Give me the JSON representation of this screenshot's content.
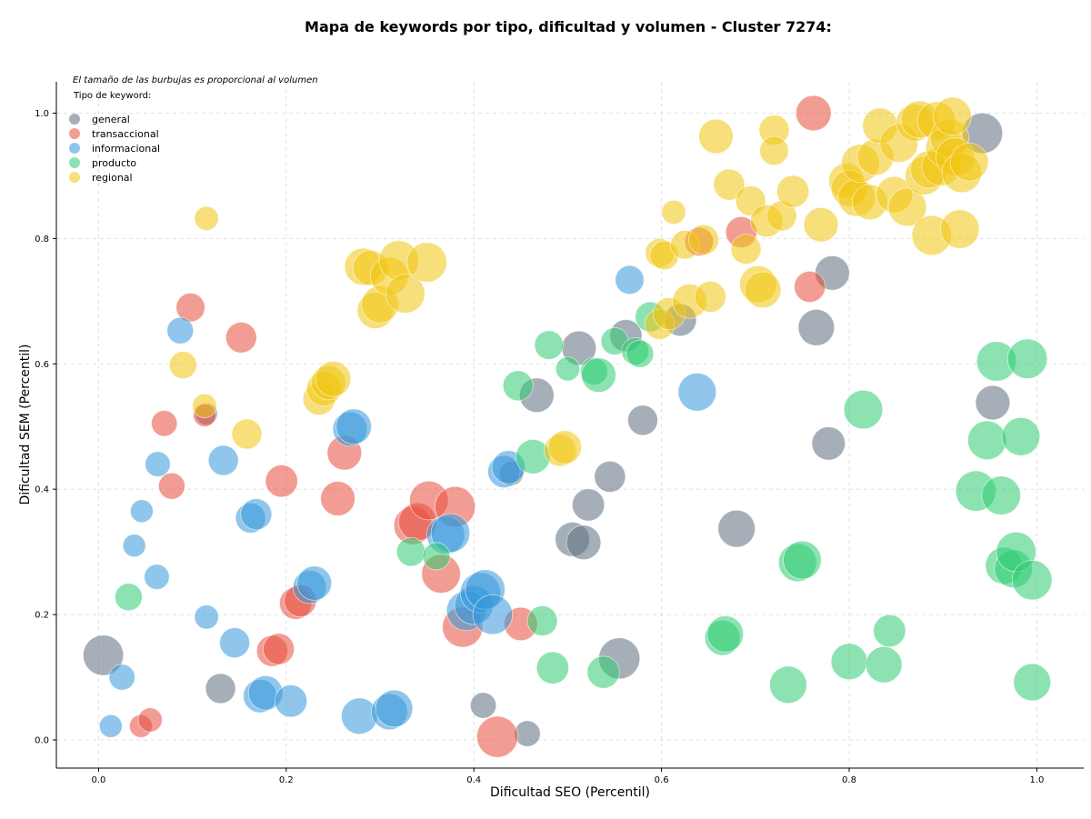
{
  "chart_data": {
    "type": "scatter",
    "title": "Mapa de keywords por tipo, dificultad y volumen - Cluster 7274:",
    "xlabel": "Dificultad SEO (Percentil)",
    "ylabel": "Dificultad SEM (Percentil)",
    "xlim": [
      -0.045,
      1.05
    ],
    "ylim": [
      -0.045,
      1.05
    ],
    "xticks": [
      "0.0",
      "0.2",
      "0.4",
      "0.6",
      "0.8",
      "1.0"
    ],
    "yticks": [
      "0.0",
      "0.2",
      "0.4",
      "0.6",
      "0.8",
      "1.0"
    ],
    "grid": true,
    "note": "El tamaño de las burbujas es proporcional al volumen",
    "legend": {
      "title": "Tipo de keyword:",
      "placement": "top-left"
    },
    "series": [
      {
        "name": "general",
        "color": "#5d6d7e",
        "points": [
          [
            0.005,
            0.135,
            0.9
          ],
          [
            0.13,
            0.082,
            0.35
          ],
          [
            0.115,
            0.52,
            0.1
          ],
          [
            0.41,
            0.055,
            0.2
          ],
          [
            0.457,
            0.01,
            0.2
          ],
          [
            0.44,
            0.425,
            0.15
          ],
          [
            0.467,
            0.55,
            0.55
          ],
          [
            0.512,
            0.625,
            0.55
          ],
          [
            0.522,
            0.375,
            0.45
          ],
          [
            0.505,
            0.32,
            0.55
          ],
          [
            0.517,
            0.315,
            0.55
          ],
          [
            0.545,
            0.42,
            0.4
          ],
          [
            0.555,
            0.13,
            0.95
          ],
          [
            0.562,
            0.645,
            0.45
          ],
          [
            0.58,
            0.51,
            0.35
          ],
          [
            0.62,
            0.67,
            0.45
          ],
          [
            0.68,
            0.337,
            0.7
          ],
          [
            0.765,
            0.658,
            0.65
          ],
          [
            0.782,
            0.745,
            0.55
          ],
          [
            0.778,
            0.473,
            0.5
          ],
          [
            0.953,
            0.538,
            0.55
          ],
          [
            0.942,
            0.968,
            0.9
          ]
        ]
      },
      {
        "name": "transaccional",
        "color": "#e74c3c",
        "points": [
          [
            0.045,
            0.022,
            0.12
          ],
          [
            0.055,
            0.032,
            0.15
          ],
          [
            0.07,
            0.505,
            0.2
          ],
          [
            0.078,
            0.405,
            0.22
          ],
          [
            0.098,
            0.69,
            0.3
          ],
          [
            0.113,
            0.518,
            0.12
          ],
          [
            0.152,
            0.642,
            0.38
          ],
          [
            0.195,
            0.413,
            0.45
          ],
          [
            0.185,
            0.142,
            0.4
          ],
          [
            0.192,
            0.145,
            0.4
          ],
          [
            0.21,
            0.218,
            0.45
          ],
          [
            0.215,
            0.222,
            0.45
          ],
          [
            0.255,
            0.385,
            0.55
          ],
          [
            0.262,
            0.458,
            0.55
          ],
          [
            0.335,
            0.342,
            0.75
          ],
          [
            0.34,
            0.348,
            0.75
          ],
          [
            0.352,
            0.382,
            0.8
          ],
          [
            0.365,
            0.265,
            0.8
          ],
          [
            0.38,
            0.372,
            0.9
          ],
          [
            0.388,
            0.18,
            0.9
          ],
          [
            0.425,
            0.005,
            0.95
          ],
          [
            0.45,
            0.185,
            0.5
          ],
          [
            0.64,
            0.795,
            0.3
          ],
          [
            0.685,
            0.81,
            0.4
          ],
          [
            0.758,
            0.723,
            0.4
          ],
          [
            0.762,
            1.0,
            0.6
          ]
        ]
      },
      {
        "name": "informacional",
        "color": "#3498db",
        "points": [
          [
            0.013,
            0.022,
            0.12
          ],
          [
            0.025,
            0.1,
            0.2
          ],
          [
            0.038,
            0.31,
            0.12
          ],
          [
            0.046,
            0.365,
            0.12
          ],
          [
            0.062,
            0.26,
            0.18
          ],
          [
            0.063,
            0.44,
            0.18
          ],
          [
            0.087,
            0.653,
            0.22
          ],
          [
            0.115,
            0.196,
            0.15
          ],
          [
            0.133,
            0.446,
            0.35
          ],
          [
            0.145,
            0.155,
            0.35
          ],
          [
            0.162,
            0.354,
            0.35
          ],
          [
            0.168,
            0.36,
            0.4
          ],
          [
            0.172,
            0.07,
            0.5
          ],
          [
            0.178,
            0.075,
            0.55
          ],
          [
            0.205,
            0.062,
            0.45
          ],
          [
            0.225,
            0.244,
            0.5
          ],
          [
            0.23,
            0.25,
            0.55
          ],
          [
            0.268,
            0.496,
            0.55
          ],
          [
            0.272,
            0.5,
            0.6
          ],
          [
            0.278,
            0.038,
            0.65
          ],
          [
            0.31,
            0.045,
            0.65
          ],
          [
            0.315,
            0.05,
            0.7
          ],
          [
            0.37,
            0.327,
            0.75
          ],
          [
            0.375,
            0.33,
            0.8
          ],
          [
            0.392,
            0.206,
            0.85
          ],
          [
            0.4,
            0.215,
            0.8
          ],
          [
            0.407,
            0.235,
            0.9
          ],
          [
            0.412,
            0.24,
            0.85
          ],
          [
            0.42,
            0.2,
            0.85
          ],
          [
            0.432,
            0.428,
            0.45
          ],
          [
            0.437,
            0.435,
            0.5
          ],
          [
            0.566,
            0.734,
            0.3
          ],
          [
            0.638,
            0.555,
            0.75
          ]
        ]
      },
      {
        "name": "producto",
        "color": "#2ecc71",
        "points": [
          [
            0.032,
            0.228,
            0.25
          ],
          [
            0.333,
            0.3,
            0.3
          ],
          [
            0.36,
            0.293,
            0.25
          ],
          [
            0.447,
            0.565,
            0.35
          ],
          [
            0.463,
            0.452,
            0.55
          ],
          [
            0.473,
            0.19,
            0.35
          ],
          [
            0.48,
            0.63,
            0.3
          ],
          [
            0.484,
            0.115,
            0.45
          ],
          [
            0.5,
            0.592,
            0.15
          ],
          [
            0.528,
            0.588,
            0.25
          ],
          [
            0.533,
            0.582,
            0.55
          ],
          [
            0.538,
            0.108,
            0.45
          ],
          [
            0.55,
            0.636,
            0.25
          ],
          [
            0.572,
            0.62,
            0.25
          ],
          [
            0.577,
            0.616,
            0.25
          ],
          [
            0.588,
            0.675,
            0.35
          ],
          [
            0.665,
            0.163,
            0.6
          ],
          [
            0.668,
            0.169,
            0.65
          ],
          [
            0.735,
            0.088,
            0.7
          ],
          [
            0.745,
            0.283,
            0.75
          ],
          [
            0.75,
            0.287,
            0.75
          ],
          [
            0.8,
            0.125,
            0.65
          ],
          [
            0.815,
            0.527,
            0.8
          ],
          [
            0.837,
            0.12,
            0.65
          ],
          [
            0.843,
            0.174,
            0.45
          ],
          [
            0.935,
            0.397,
            0.9
          ],
          [
            0.947,
            0.478,
            0.8
          ],
          [
            0.957,
            0.604,
            0.85
          ],
          [
            0.962,
            0.39,
            0.8
          ],
          [
            0.965,
            0.278,
            0.7
          ],
          [
            0.975,
            0.273,
            0.75
          ],
          [
            0.978,
            0.3,
            0.85
          ],
          [
            0.983,
            0.484,
            0.75
          ],
          [
            0.99,
            0.608,
            0.85
          ],
          [
            0.995,
            0.255,
            0.85
          ],
          [
            0.995,
            0.092,
            0.7
          ]
        ]
      },
      {
        "name": "regional",
        "color": "#f1c40f",
        "points": [
          [
            0.09,
            0.598,
            0.25
          ],
          [
            0.115,
            0.832,
            0.15
          ],
          [
            0.113,
            0.533,
            0.15
          ],
          [
            0.158,
            0.488,
            0.35
          ],
          [
            0.235,
            0.544,
            0.45
          ],
          [
            0.24,
            0.56,
            0.55
          ],
          [
            0.245,
            0.57,
            0.55
          ],
          [
            0.25,
            0.576,
            0.6
          ],
          [
            0.282,
            0.755,
            0.7
          ],
          [
            0.29,
            0.753,
            0.6
          ],
          [
            0.295,
            0.685,
            0.65
          ],
          [
            0.3,
            0.695,
            0.7
          ],
          [
            0.31,
            0.74,
            0.75
          ],
          [
            0.32,
            0.765,
            0.85
          ],
          [
            0.327,
            0.712,
            0.8
          ],
          [
            0.35,
            0.762,
            0.85
          ],
          [
            0.492,
            0.462,
            0.45
          ],
          [
            0.497,
            0.467,
            0.5
          ],
          [
            0.598,
            0.663,
            0.35
          ],
          [
            0.598,
            0.777,
            0.3
          ],
          [
            0.603,
            0.773,
            0.3
          ],
          [
            0.608,
            0.68,
            0.45
          ],
          [
            0.613,
            0.842,
            0.15
          ],
          [
            0.625,
            0.79,
            0.3
          ],
          [
            0.63,
            0.7,
            0.55
          ],
          [
            0.645,
            0.798,
            0.35
          ],
          [
            0.652,
            0.707,
            0.4
          ],
          [
            0.658,
            0.963,
            0.55
          ],
          [
            0.672,
            0.886,
            0.4
          ],
          [
            0.69,
            0.783,
            0.35
          ],
          [
            0.695,
            0.86,
            0.35
          ],
          [
            0.703,
            0.727,
            0.7
          ],
          [
            0.708,
            0.718,
            0.65
          ],
          [
            0.712,
            0.828,
            0.45
          ],
          [
            0.72,
            0.973,
            0.35
          ],
          [
            0.72,
            0.94,
            0.3
          ],
          [
            0.728,
            0.836,
            0.35
          ],
          [
            0.74,
            0.875,
            0.45
          ],
          [
            0.77,
            0.822,
            0.55
          ],
          [
            0.797,
            0.892,
            0.6
          ],
          [
            0.8,
            0.88,
            0.65
          ],
          [
            0.808,
            0.865,
            0.7
          ],
          [
            0.812,
            0.92,
            0.75
          ],
          [
            0.822,
            0.858,
            0.6
          ],
          [
            0.828,
            0.93,
            0.65
          ],
          [
            0.833,
            0.98,
            0.6
          ],
          [
            0.848,
            0.87,
            0.65
          ],
          [
            0.853,
            0.952,
            0.75
          ],
          [
            0.862,
            0.85,
            0.75
          ],
          [
            0.87,
            0.985,
            0.7
          ],
          [
            0.875,
            0.99,
            0.7
          ],
          [
            0.88,
            0.9,
            0.75
          ],
          [
            0.885,
            0.91,
            0.7
          ],
          [
            0.888,
            0.805,
            0.85
          ],
          [
            0.893,
            0.988,
            0.75
          ],
          [
            0.898,
            0.915,
            0.8
          ],
          [
            0.902,
            0.945,
            0.75
          ],
          [
            0.907,
            0.96,
            0.8
          ],
          [
            0.91,
            0.995,
            0.75
          ],
          [
            0.913,
            0.93,
            0.8
          ],
          [
            0.918,
            0.815,
            0.8
          ],
          [
            0.92,
            0.905,
            0.85
          ],
          [
            0.928,
            0.922,
            0.75
          ]
        ]
      }
    ]
  }
}
